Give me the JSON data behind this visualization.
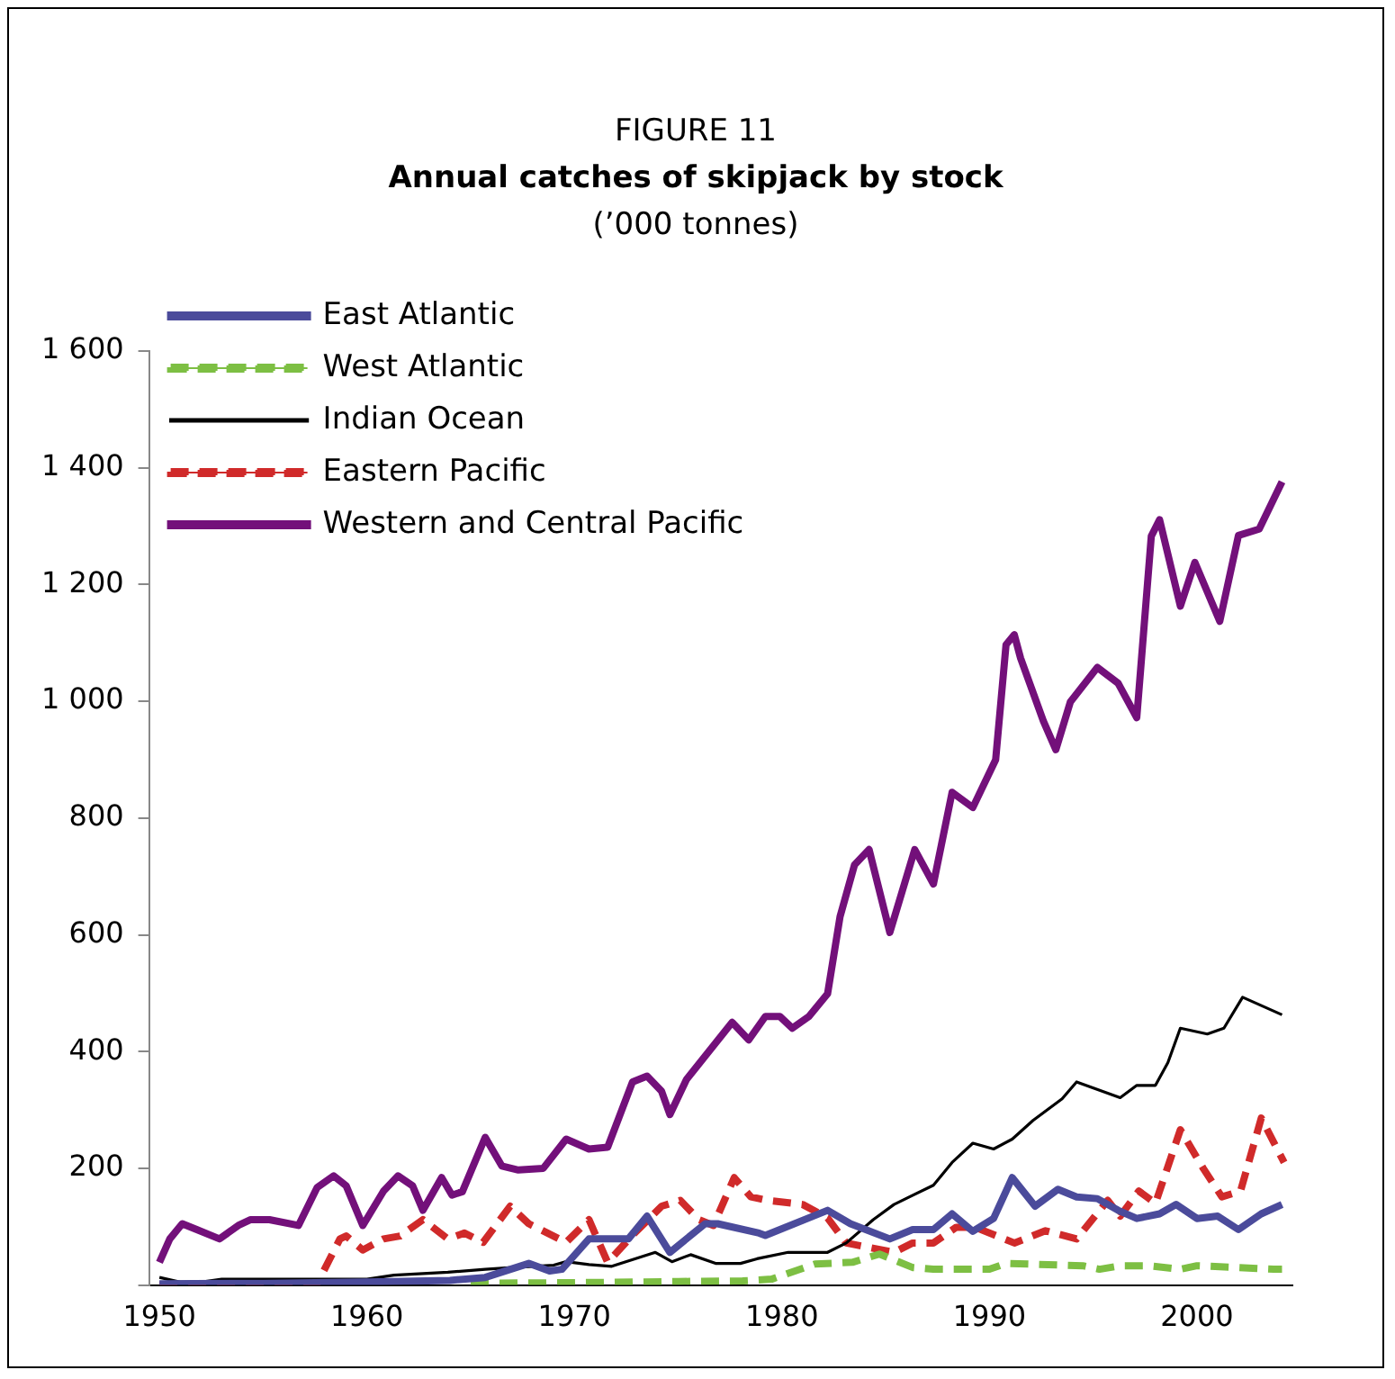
{
  "chart_data": {
    "type": "line",
    "title": "Annual catches of skipjack by stock",
    "subtitle": "(’000 tonnes)",
    "annotations": [
      "FIGURE 11"
    ],
    "xlim": [
      1949.5,
      2004.6
    ],
    "xticks": [
      1950,
      1960,
      1970,
      1980,
      1990,
      2000
    ],
    "ylim": [
      0,
      1600
    ],
    "yticks": [
      {
        "value": 0,
        "label": null
      },
      200,
      400,
      600,
      800,
      {
        "value": 1000,
        "label": "1 000"
      },
      {
        "value": 1200,
        "label": "1 200"
      },
      {
        "value": 1400,
        "label": "1 400"
      },
      {
        "value": 1600,
        "label": "1 600"
      }
    ],
    "grid": false,
    "legend": "top left",
    "marker": "none",
    "series": [
      {
        "name": "East Atlantic",
        "color": "#4b4b9b",
        "line_style": "solid",
        "x": [
          1950,
          1955,
          1960,
          1964,
          1965.7,
          1967.8,
          1968.8,
          1969.4,
          1970.7,
          1972.6,
          1973.5,
          1974.6,
          1976.3,
          1976.9,
          1978.9,
          1979.2,
          1982.2,
          1983.3,
          1985.2,
          1986.3,
          1987.3,
          1988.2,
          1989.2,
          1990.2,
          1991.1,
          1992.2,
          1993.3,
          1994.2,
          1995.2,
          1996.2,
          1997.1,
          1998.2,
          1999,
          2000,
          2001,
          2002,
          2003.1,
          2004.1
        ],
        "values": [
          2,
          3,
          5,
          8,
          13,
          37,
          24,
          27,
          79,
          79,
          118,
          56,
          105,
          105,
          89,
          85,
          128,
          105,
          79,
          95,
          95,
          122,
          92,
          114,
          184,
          135,
          164,
          151,
          148,
          128,
          114,
          122,
          138,
          114,
          118,
          95,
          122,
          138
        ]
      },
      {
        "name": "West Atlantic",
        "color": "#7dbf43",
        "line_style": "dashed",
        "x": [
          1965,
          1970,
          1975,
          1978.1,
          1979.5,
          1981.6,
          1983.4,
          1984.7,
          1986.3,
          1987.3,
          1990,
          1990.8,
          1994.5,
          1995.3,
          1996.3,
          1997.7,
          1999.2,
          2000,
          2002,
          2003.7,
          2004.1
        ],
        "values": [
          3,
          4,
          6,
          7,
          10,
          36,
          39,
          53,
          30,
          27,
          27,
          37,
          33,
          27,
          33,
          33,
          27,
          33,
          30,
          27,
          27
        ]
      },
      {
        "name": "Indian Ocean",
        "color": "#000000",
        "line_style": "solid",
        "x": [
          1950,
          1951,
          1952,
          1953,
          1960,
          1961.3,
          1963.9,
          1965.7,
          1967,
          1969,
          1969.6,
          1970.7,
          1971.8,
          1973.9,
          1974.7,
          1975.6,
          1976.8,
          1978,
          1978.8,
          1980.3,
          1982.2,
          1983.1,
          1984.4,
          1985.4,
          1987.3,
          1988.2,
          1989.2,
          1990.2,
          1991.1,
          1992.1,
          1993.5,
          1994.2,
          1996.3,
          1997.1,
          1998,
          1998.6,
          1999.2,
          2000.5,
          2001.3,
          2002.2,
          2004.1
        ],
        "values": [
          13,
          5,
          5,
          10,
          10,
          17,
          22,
          27,
          30,
          34,
          40,
          35,
          32,
          56,
          40,
          52,
          37,
          37,
          45,
          56,
          56,
          72,
          112,
          138,
          171,
          210,
          243,
          233,
          250,
          282,
          319,
          348,
          321,
          342,
          342,
          381,
          440,
          430,
          440,
          493,
          463
        ]
      },
      {
        "name": "Eastern Pacific",
        "color": "#d02a2a",
        "line_style": "dashed",
        "x": [
          1950,
          1955,
          1957.6,
          1958.7,
          1959,
          1959.8,
          1960.8,
          1961.6,
          1962.7,
          1963.9,
          1964.7,
          1965.6,
          1966.9,
          1967.8,
          1969.6,
          1970.7,
          1971.6,
          1972.9,
          1974.2,
          1975.1,
          1976,
          1976.7,
          1977.7,
          1978.5,
          1979.3,
          1981,
          1982.2,
          1983.1,
          1985.4,
          1986.3,
          1987.3,
          1988.4,
          1989.3,
          1991.2,
          1992.7,
          1994.2,
          1995.7,
          1996.3,
          1997.2,
          1998,
          1999.2,
          2000.3,
          2001.2,
          2002.1,
          2003.1,
          2004.2
        ],
        "values": [
          0,
          1,
          2,
          79,
          84,
          60,
          79,
          84,
          112,
          79,
          89,
          73,
          135,
          105,
          73,
          112,
          39,
          89,
          135,
          145,
          112,
          102,
          184,
          151,
          145,
          138,
          115,
          72,
          56,
          72,
          72,
          99,
          99,
          72,
          93,
          79,
          145,
          118,
          161,
          140,
          266,
          200,
          151,
          161,
          286,
          210
        ]
      },
      {
        "name": "Western and Central Pacific",
        "color": "#73107a",
        "line_style": "solid",
        "x": [
          1950,
          1950.5,
          1951.1,
          1951.8,
          1952.9,
          1953.8,
          1954.4,
          1955.3,
          1956.7,
          1957.6,
          1958.4,
          1959,
          1959.8,
          1960.8,
          1961.5,
          1962.2,
          1962.7,
          1963.6,
          1964.1,
          1964.6,
          1965.7,
          1966.5,
          1967.3,
          1968.5,
          1969.6,
          1970.7,
          1971.6,
          1972.8,
          1973.5,
          1974.2,
          1974.6,
          1975.4,
          1977.6,
          1978.4,
          1979.2,
          1979.9,
          1980.5,
          1981.3,
          1982.2,
          1982.8,
          1983.5,
          1984.2,
          1985.2,
          1986.4,
          1987.3,
          1988.2,
          1989.2,
          1990.3,
          1990.8,
          1991.2,
          1991.5,
          1992.6,
          1993.2,
          1993.9,
          1995.2,
          1996.2,
          1997.1,
          1997.8,
          1998.2,
          1999.2,
          1999.9,
          2001.1,
          2002,
          2003,
          2004.1
        ],
        "values": [
          39,
          79,
          105,
          95,
          79,
          102,
          112,
          112,
          102,
          167,
          187,
          170,
          102,
          161,
          187,
          170,
          128,
          184,
          154,
          160,
          253,
          204,
          197,
          200,
          250,
          233,
          236,
          348,
          358,
          332,
          292,
          352,
          450,
          420,
          460,
          460,
          440,
          460,
          499,
          631,
          720,
          746,
          604,
          746,
          687,
          844,
          818,
          900,
          1097,
          1114,
          1074,
          966,
          917,
          999,
          1058,
          1031,
          972,
          1283,
          1311,
          1163,
          1238,
          1137,
          1284,
          1295,
          1376
        ]
      }
    ]
  }
}
